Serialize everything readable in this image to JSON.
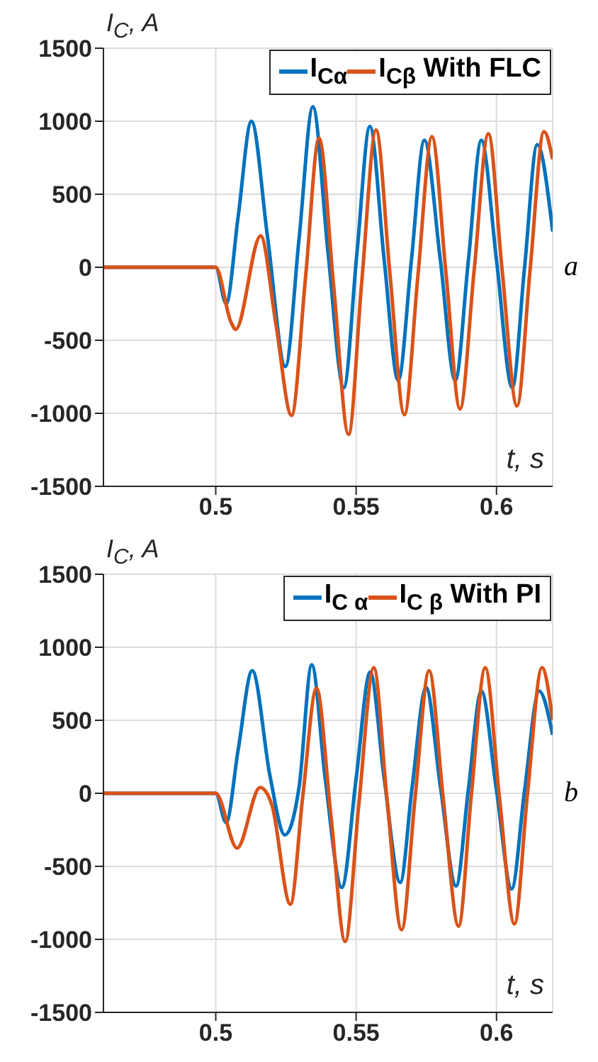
{
  "chart_data": [
    {
      "type": "line",
      "ylabel": "I$_{C}$, A",
      "xlabel": "t, s",
      "annotations": [
        "a"
      ],
      "xlim": [
        0.46,
        0.62
      ],
      "xticks": [
        0.5,
        0.55,
        0.6
      ],
      "ylim": [
        -1500,
        1500
      ],
      "yticks": [
        -1500,
        -1000,
        -500,
        0,
        500,
        1000,
        1500
      ],
      "grid": true,
      "legend": "top right",
      "series": [
        {
          "name": "I$_{Cα}$",
          "color": "#0072bd",
          "x": [
            0.46,
            0.5,
            0.5037,
            0.508,
            0.5127,
            0.5185,
            0.5248,
            0.5297,
            0.5346,
            0.54,
            0.5456,
            0.5503,
            0.5549,
            0.56,
            0.565,
            0.5697,
            0.5743,
            0.58,
            0.5853,
            0.59,
            0.5946,
            0.6,
            0.6056,
            0.61,
            0.6145,
            0.62
          ],
          "values": [
            0,
            0,
            -250,
            350,
            1000,
            200,
            -680,
            200,
            1100,
            100,
            -825,
            100,
            965,
            50,
            -775,
            50,
            870,
            50,
            -775,
            50,
            870,
            50,
            -825,
            0,
            840,
            245
          ]
        },
        {
          "name": "I$_{Cβ}$ With FLC",
          "color": "#d95319",
          "x": [
            0.46,
            0.5,
            0.5054,
            0.5071,
            0.516,
            0.5215,
            0.527,
            0.532,
            0.5368,
            0.542,
            0.5473,
            0.552,
            0.5571,
            0.562,
            0.5672,
            0.572,
            0.577,
            0.582,
            0.587,
            0.592,
            0.5971,
            0.602,
            0.6073,
            0.612,
            0.6169,
            0.62
          ],
          "values": [
            0,
            0,
            -375,
            -425,
            215,
            -400,
            -1015,
            -65,
            885,
            -130,
            -1145,
            -100,
            940,
            -35,
            -1010,
            -60,
            895,
            -40,
            -970,
            -30,
            915,
            -20,
            -950,
            -10,
            930,
            740
          ]
        }
      ]
    },
    {
      "type": "line",
      "ylabel": "I$_{C}$, A",
      "xlabel": "t, s",
      "annotations": [
        "b"
      ],
      "xlim": [
        0.46,
        0.62
      ],
      "xticks": [
        0.5,
        0.55,
        0.6
      ],
      "ylim": [
        -1500,
        1500
      ],
      "yticks": [
        -1500,
        -1000,
        -500,
        0,
        500,
        1000,
        1500
      ],
      "grid": true,
      "legend": "top right",
      "series": [
        {
          "name": "I$_{C α}$",
          "color": "#0072bd",
          "x": [
            0.46,
            0.5,
            0.5037,
            0.508,
            0.513,
            0.5194,
            0.5246,
            0.5297,
            0.5342,
            0.539,
            0.5449,
            0.55,
            0.555,
            0.56,
            0.5657,
            0.57,
            0.5749,
            0.58,
            0.5856,
            0.59,
            0.5946,
            0.6,
            0.6054,
            0.61,
            0.6152,
            0.62
          ],
          "values": [
            0,
            0,
            -200,
            300,
            840,
            110,
            -285,
            45,
            880,
            100,
            -645,
            100,
            830,
            100,
            -610,
            50,
            725,
            50,
            -635,
            30,
            700,
            20,
            -655,
            20,
            700,
            400
          ]
        },
        {
          "name": "I$_{C β}$ With PI",
          "color": "#d95319",
          "x": [
            0.46,
            0.5,
            0.5076,
            0.5158,
            0.52,
            0.5266,
            0.531,
            0.5359,
            0.541,
            0.5461,
            0.551,
            0.5563,
            0.561,
            0.5662,
            0.571,
            0.576,
            0.581,
            0.5865,
            0.591,
            0.596,
            0.601,
            0.6064,
            0.611,
            0.6162,
            0.62
          ],
          "values": [
            0,
            0,
            -375,
            40,
            -80,
            -760,
            -20,
            720,
            -150,
            -1015,
            -70,
            860,
            -40,
            -935,
            -30,
            840,
            -30,
            -910,
            -20,
            860,
            -20,
            -895,
            -10,
            860,
            500
          ]
        }
      ]
    }
  ]
}
